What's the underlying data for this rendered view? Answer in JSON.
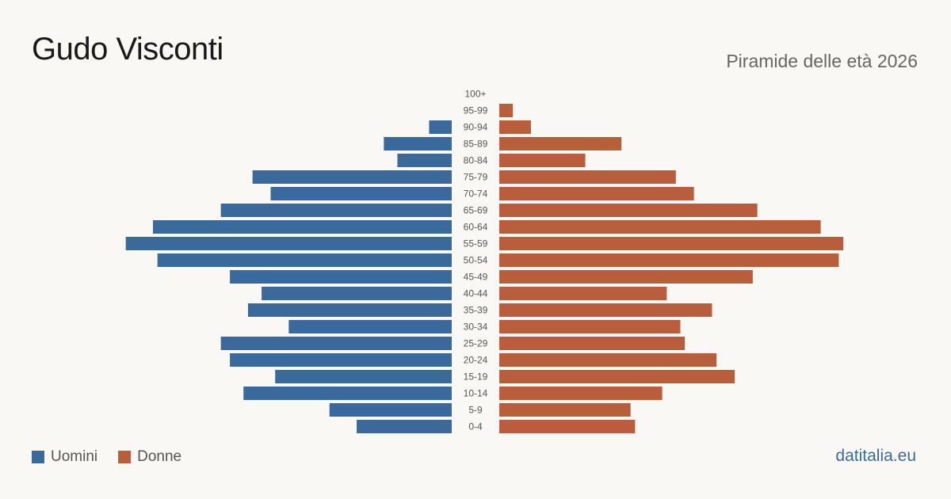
{
  "header": {
    "title": "Gudo Visconti",
    "subtitle": "Piramide delle età 2026"
  },
  "legend": {
    "men_label": "Uomini",
    "women_label": "Donne"
  },
  "brand": {
    "label": "datitalia.eu"
  },
  "colors": {
    "men": "#3a6a9c",
    "women": "#b95e3c",
    "brand": "#3a6a9c"
  },
  "chart_data": {
    "type": "bar",
    "orientation": "population-pyramid",
    "categories": [
      "100+",
      "95-99",
      "90-94",
      "85-89",
      "80-84",
      "75-79",
      "70-74",
      "65-69",
      "60-64",
      "55-59",
      "50-54",
      "45-49",
      "40-44",
      "35-39",
      "30-34",
      "25-29",
      "20-24",
      "15-19",
      "10-14",
      "5-9",
      "0-4"
    ],
    "series": [
      {
        "name": "Uomini",
        "values": [
          0,
          0,
          5,
          15,
          12,
          44,
          40,
          51,
          66,
          72,
          65,
          49,
          42,
          45,
          36,
          51,
          49,
          39,
          46,
          27,
          21
        ]
      },
      {
        "name": "Donne",
        "values": [
          0,
          3,
          7,
          27,
          19,
          39,
          43,
          57,
          71,
          76,
          75,
          56,
          37,
          47,
          40,
          41,
          48,
          52,
          36,
          29,
          30
        ]
      }
    ],
    "xlim": [
      0,
      80
    ],
    "legend_position": "bottom-left",
    "grid": false
  }
}
